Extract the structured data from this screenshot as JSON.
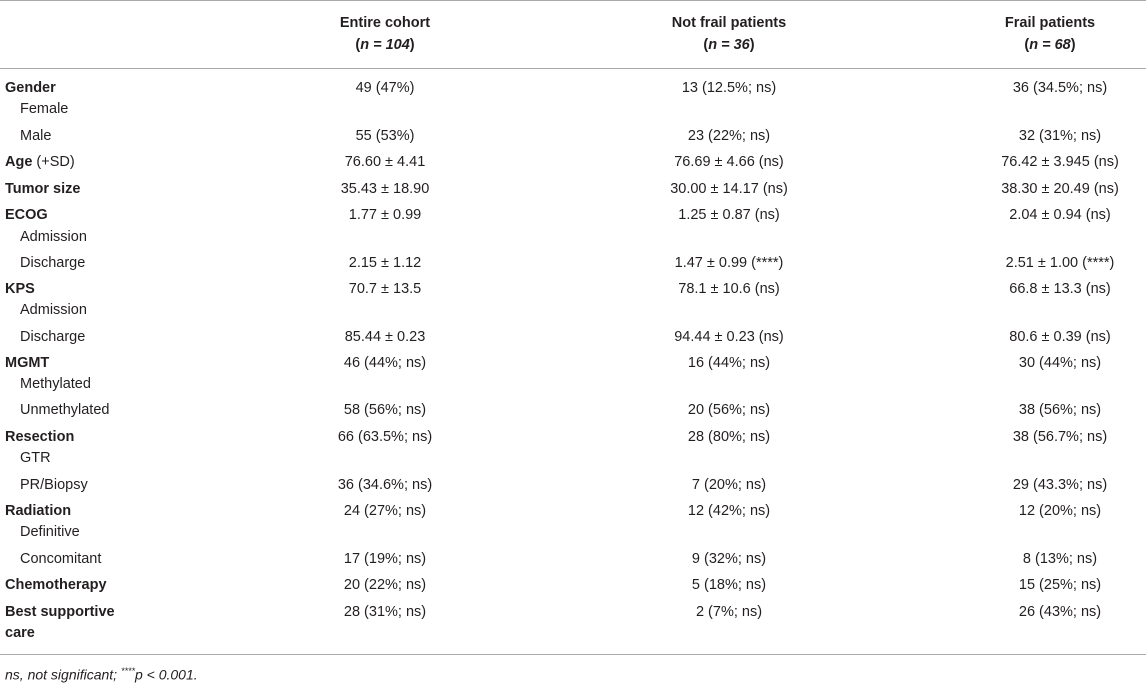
{
  "header": {
    "col1_title": "Entire cohort",
    "col1_n": "n = 104",
    "col2_title": "Not frail patients",
    "col2_n": "n = 36",
    "col3_title": "Frail patients",
    "col3_n": "n = 68"
  },
  "rows": {
    "gender": {
      "label": "Gender",
      "female": "Female",
      "male": "Male",
      "female_vals": [
        "49 (47%)",
        "13 (12.5%; ns)",
        "36 (34.5%; ns)"
      ],
      "male_vals": [
        "55 (53%)",
        "23 (22%; ns)",
        "32 (31%; ns)"
      ]
    },
    "age": {
      "label": "Age",
      "suffix": " (+SD)",
      "vals": [
        "76.60 ± 4.41",
        "76.69 ± 4.66 (ns)",
        "76.42 ± 3.945 (ns)"
      ]
    },
    "tumor": {
      "label": "Tumor size",
      "vals": [
        "35.43 ± 18.90",
        "30.00 ± 14.17 (ns)",
        "38.30 ± 20.49 (ns)"
      ]
    },
    "ecog": {
      "label": "ECOG",
      "admission": "Admission",
      "discharge": "Discharge",
      "admission_vals": [
        "1.77 ± 0.99",
        "1.25 ± 0.87 (ns)",
        "2.04 ± 0.94 (ns)"
      ],
      "discharge_vals": [
        "2.15 ± 1.12",
        "1.47 ± 0.99 (****)",
        "2.51 ± 1.00 (****)"
      ]
    },
    "kps": {
      "label": "KPS",
      "admission": "Admission",
      "discharge": "Discharge",
      "admission_vals": [
        "70.7 ± 13.5",
        "78.1 ± 10.6 (ns)",
        "66.8 ± 13.3 (ns)"
      ],
      "discharge_vals": [
        "85.44 ± 0.23",
        "94.44 ± 0.23 (ns)",
        "80.6 ± 0.39 (ns)"
      ]
    },
    "mgmt": {
      "label": "MGMT",
      "methylated": "Methylated",
      "unmethylated": "Unmethylated",
      "methylated_vals": [
        "46 (44%; ns)",
        "16 (44%; ns)",
        "30 (44%; ns)"
      ],
      "unmethylated_vals": [
        "58 (56%; ns)",
        "20 (56%; ns)",
        "38 (56%; ns)"
      ]
    },
    "resection": {
      "label": "Resection",
      "gtr": "GTR",
      "pr": "PR/Biopsy",
      "gtr_vals": [
        "66 (63.5%; ns)",
        "28 (80%; ns)",
        "38 (56.7%; ns)"
      ],
      "pr_vals": [
        "36 (34.6%; ns)",
        "7 (20%; ns)",
        "29 (43.3%; ns)"
      ]
    },
    "radiation": {
      "label": "Radiation",
      "definitive": "Definitive",
      "concomitant": "Concomitant",
      "definitive_vals": [
        "24 (27%; ns)",
        "12 (42%; ns)",
        "12 (20%; ns)"
      ],
      "concomitant_vals": [
        "17 (19%; ns)",
        "9 (32%; ns)",
        "8 (13%; ns)"
      ]
    },
    "chemo": {
      "label": "Chemotherapy",
      "vals": [
        "20 (22%; ns)",
        "5 (18%; ns)",
        "15 (25%; ns)"
      ]
    },
    "bsc": {
      "label_line1": "Best supportive",
      "label_line2": "care",
      "vals": [
        "28 (31%; ns)",
        "2 (7%; ns)",
        "26 (43%; ns)"
      ]
    }
  },
  "footnote": {
    "text1": "ns, not significant; ",
    "stars": "****",
    "text2": "p < 0.001."
  }
}
